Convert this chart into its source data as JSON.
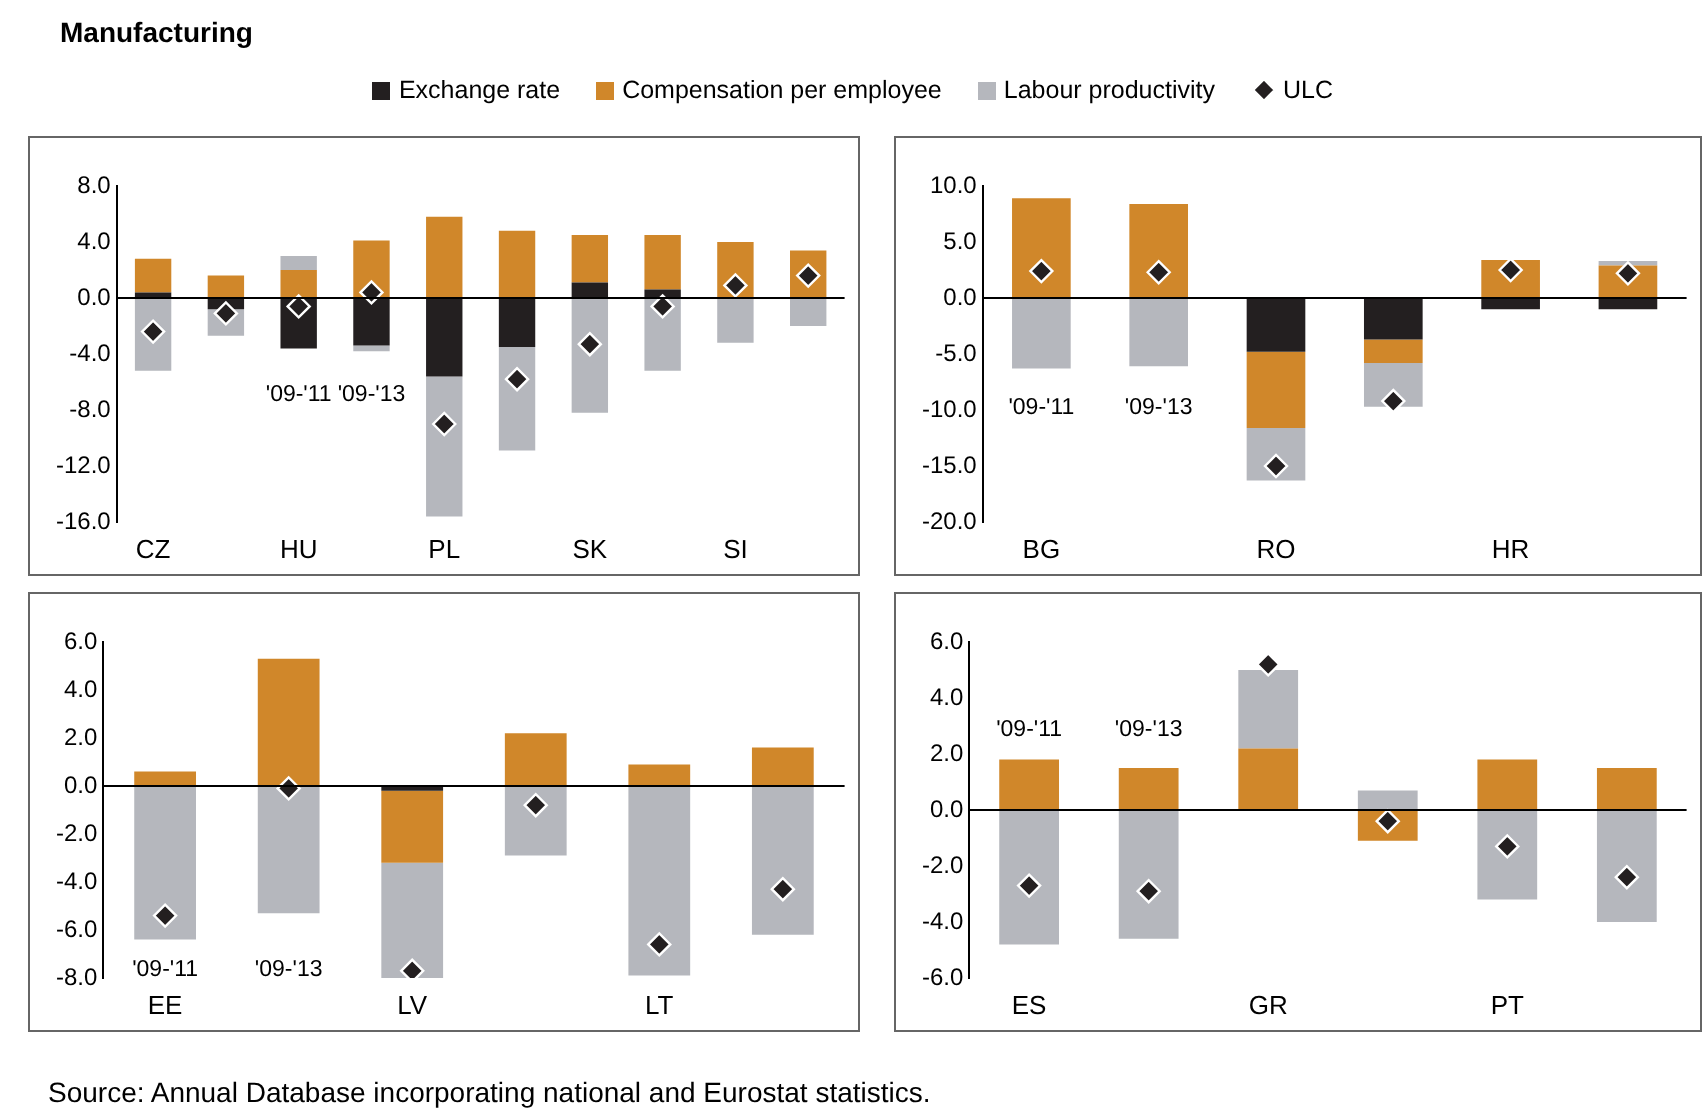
{
  "chart_data": [
    {
      "type": "bar",
      "title": "Manufacturing",
      "stacked": true,
      "legend": "top",
      "marker": "diamond",
      "categories": [
        "CZ",
        null,
        "HU",
        null,
        "PL",
        null,
        "SK",
        null,
        "SI",
        null
      ],
      "ylim": [
        -16,
        8
      ],
      "yticks": [
        {
          "value": 8,
          "label": "8.0"
        },
        {
          "value": 4,
          "label": "4.0"
        },
        {
          "value": 0,
          "label": "0.0"
        },
        {
          "value": -4,
          "label": "-4.0"
        },
        {
          "value": -8,
          "label": "-8.0"
        },
        {
          "value": -12,
          "label": "-12.0"
        },
        {
          "value": -16,
          "label": "-16.0"
        }
      ],
      "annotations": [
        "'09-'11",
        "'09-'13"
      ],
      "series": [
        {
          "name": "Exchange rate",
          "color": "#231f20",
          "values": [
            0.4,
            -0.8,
            -3.6,
            -3.4,
            -5.6,
            -3.5,
            1.1,
            0.6,
            0,
            0
          ]
        },
        {
          "name": "Compensation per employee",
          "color": "#d0872a",
          "values": [
            2.4,
            1.6,
            2.0,
            4.1,
            5.8,
            4.8,
            3.4,
            3.9,
            4.0,
            3.4
          ]
        },
        {
          "name": "Labour productivity",
          "color": "#b5b7bd",
          "values": [
            -5.2,
            -1.9,
            1.0,
            -0.4,
            -10.0,
            -7.4,
            -8.2,
            -5.2,
            -3.2,
            -2.0
          ]
        },
        {
          "name": "ULC",
          "type": "scatter",
          "color": "#231f20",
          "values": [
            -2.4,
            -1.1,
            -0.6,
            0.4,
            -9.0,
            -5.8,
            -3.3,
            -0.6,
            0.9,
            1.6
          ]
        }
      ]
    },
    {
      "type": "bar",
      "stacked": true,
      "marker": "diamond",
      "categories": [
        "BG",
        null,
        "RO",
        null,
        "HR",
        null
      ],
      "ylim": [
        -20,
        10
      ],
      "yticks": [
        {
          "value": 10,
          "label": "10.0"
        },
        {
          "value": 5,
          "label": "5.0"
        },
        {
          "value": 0,
          "label": "0.0"
        },
        {
          "value": -5,
          "label": "-5.0"
        },
        {
          "value": -10,
          "label": "-10.0"
        },
        {
          "value": -15,
          "label": "-15.0"
        },
        {
          "value": -20,
          "label": "-20.0"
        }
      ],
      "annotations": [
        "'09-'11",
        "'09-'13"
      ],
      "series": [
        {
          "color": "#231f20",
          "values": [
            0,
            0,
            -4.8,
            -3.7,
            -1.0,
            -1.0
          ]
        },
        {
          "color": "#d0872a",
          "values": [
            8.9,
            8.4,
            -6.8,
            -2.1,
            3.4,
            2.9
          ]
        },
        {
          "color": "#b5b7bd",
          "values": [
            -6.3,
            -6.1,
            -4.7,
            -3.9,
            0,
            0.4
          ]
        },
        {
          "type": "scatter",
          "color": "#231f20",
          "values": [
            2.4,
            2.3,
            -15.0,
            -9.2,
            2.5,
            2.2
          ]
        }
      ]
    },
    {
      "type": "bar",
      "stacked": true,
      "marker": "diamond",
      "categories": [
        "EE",
        null,
        "LV",
        null,
        "LT",
        null
      ],
      "ylim": [
        -8,
        6
      ],
      "yticks": [
        {
          "value": 6,
          "label": "6.0"
        },
        {
          "value": 4,
          "label": "4.0"
        },
        {
          "value": 2,
          "label": "2.0"
        },
        {
          "value": 0,
          "label": "0.0"
        },
        {
          "value": -2,
          "label": "-2.0"
        },
        {
          "value": -4,
          "label": "-4.0"
        },
        {
          "value": -6,
          "label": "-6.0"
        },
        {
          "value": -8,
          "label": "-8.0"
        }
      ],
      "annotations": [
        "'09-'11",
        "'09-'13"
      ],
      "series": [
        {
          "color": "#231f20",
          "values": [
            0,
            0,
            -0.2,
            0,
            0,
            0
          ]
        },
        {
          "color": "#d0872a",
          "values": [
            0.6,
            5.3,
            -3.0,
            2.2,
            0.9,
            1.6
          ]
        },
        {
          "color": "#b5b7bd",
          "values": [
            -6.4,
            -5.3,
            -4.8,
            -2.9,
            -7.9,
            -6.2
          ]
        },
        {
          "type": "scatter",
          "color": "#231f20",
          "values": [
            -5.4,
            -0.1,
            -7.7,
            -0.8,
            -6.6,
            -4.3
          ]
        }
      ]
    },
    {
      "type": "bar",
      "stacked": true,
      "marker": "diamond",
      "categories": [
        "ES",
        null,
        "GR",
        null,
        "PT",
        null
      ],
      "ylim": [
        -6,
        6
      ],
      "yticks": [
        {
          "value": 6,
          "label": "6.0"
        },
        {
          "value": 4,
          "label": "4.0"
        },
        {
          "value": 2,
          "label": "2.0"
        },
        {
          "value": 0,
          "label": "0.0"
        },
        {
          "value": -2,
          "label": "-2.0"
        },
        {
          "value": -4,
          "label": "-4.0"
        },
        {
          "value": -6,
          "label": "-6.0"
        }
      ],
      "annotations": [
        "'09-'11",
        "'09-'13",
        "Source: Annual Database incorporating national and Eurostat statistics."
      ],
      "series": [
        {
          "color": "#231f20",
          "values": [
            0,
            0,
            0,
            0,
            0,
            0
          ]
        },
        {
          "color": "#d0872a",
          "values": [
            1.8,
            1.5,
            2.2,
            -1.1,
            1.8,
            1.5
          ]
        },
        {
          "color": "#b5b7bd",
          "values": [
            -4.8,
            -4.6,
            2.8,
            0.7,
            -3.2,
            -4.0
          ]
        },
        {
          "type": "scatter",
          "color": "#231f20",
          "values": [
            -2.7,
            -2.9,
            5.2,
            -0.4,
            -1.3,
            -2.4
          ]
        }
      ]
    }
  ]
}
